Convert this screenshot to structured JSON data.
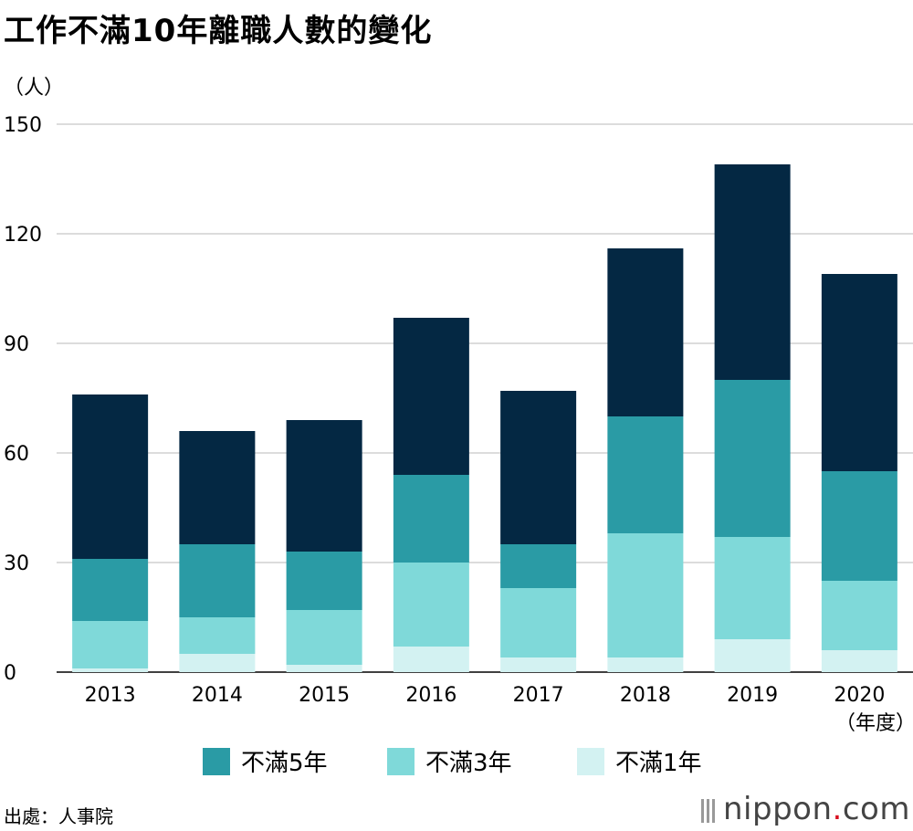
{
  "header": {
    "title": "工作不滿10年離職人數的變化",
    "unit": "（人）"
  },
  "chart_data": {
    "type": "bar",
    "stacked": true,
    "categories": [
      "2013",
      "2014",
      "2015",
      "2016",
      "2017",
      "2018",
      "2019",
      "2020"
    ],
    "x_unit_label": "（年度）",
    "yticks": [
      0,
      30,
      60,
      90,
      120,
      150
    ],
    "ylim": [
      0,
      150
    ],
    "grid": true,
    "series": [
      {
        "name": "不滿1年",
        "color": "#d3f2f2",
        "values": [
          1,
          5,
          2,
          7,
          4,
          4,
          9,
          6
        ]
      },
      {
        "name": "不滿3年",
        "color": "#7fd9d9",
        "values": [
          13,
          10,
          15,
          23,
          19,
          34,
          28,
          19
        ]
      },
      {
        "name": "不滿5年",
        "color": "#2a9ba5",
        "values": [
          17,
          20,
          16,
          24,
          12,
          32,
          43,
          30
        ]
      },
      {
        "color": "#042843",
        "values": [
          45,
          31,
          36,
          43,
          42,
          46,
          59,
          54
        ]
      }
    ],
    "legend_order": [
      2,
      1,
      0
    ],
    "legend_position": "bottom"
  },
  "footer": {
    "source": "出處：人事院",
    "logo_main": "nippon",
    "logo_dot": ".",
    "logo_tail": "com"
  }
}
